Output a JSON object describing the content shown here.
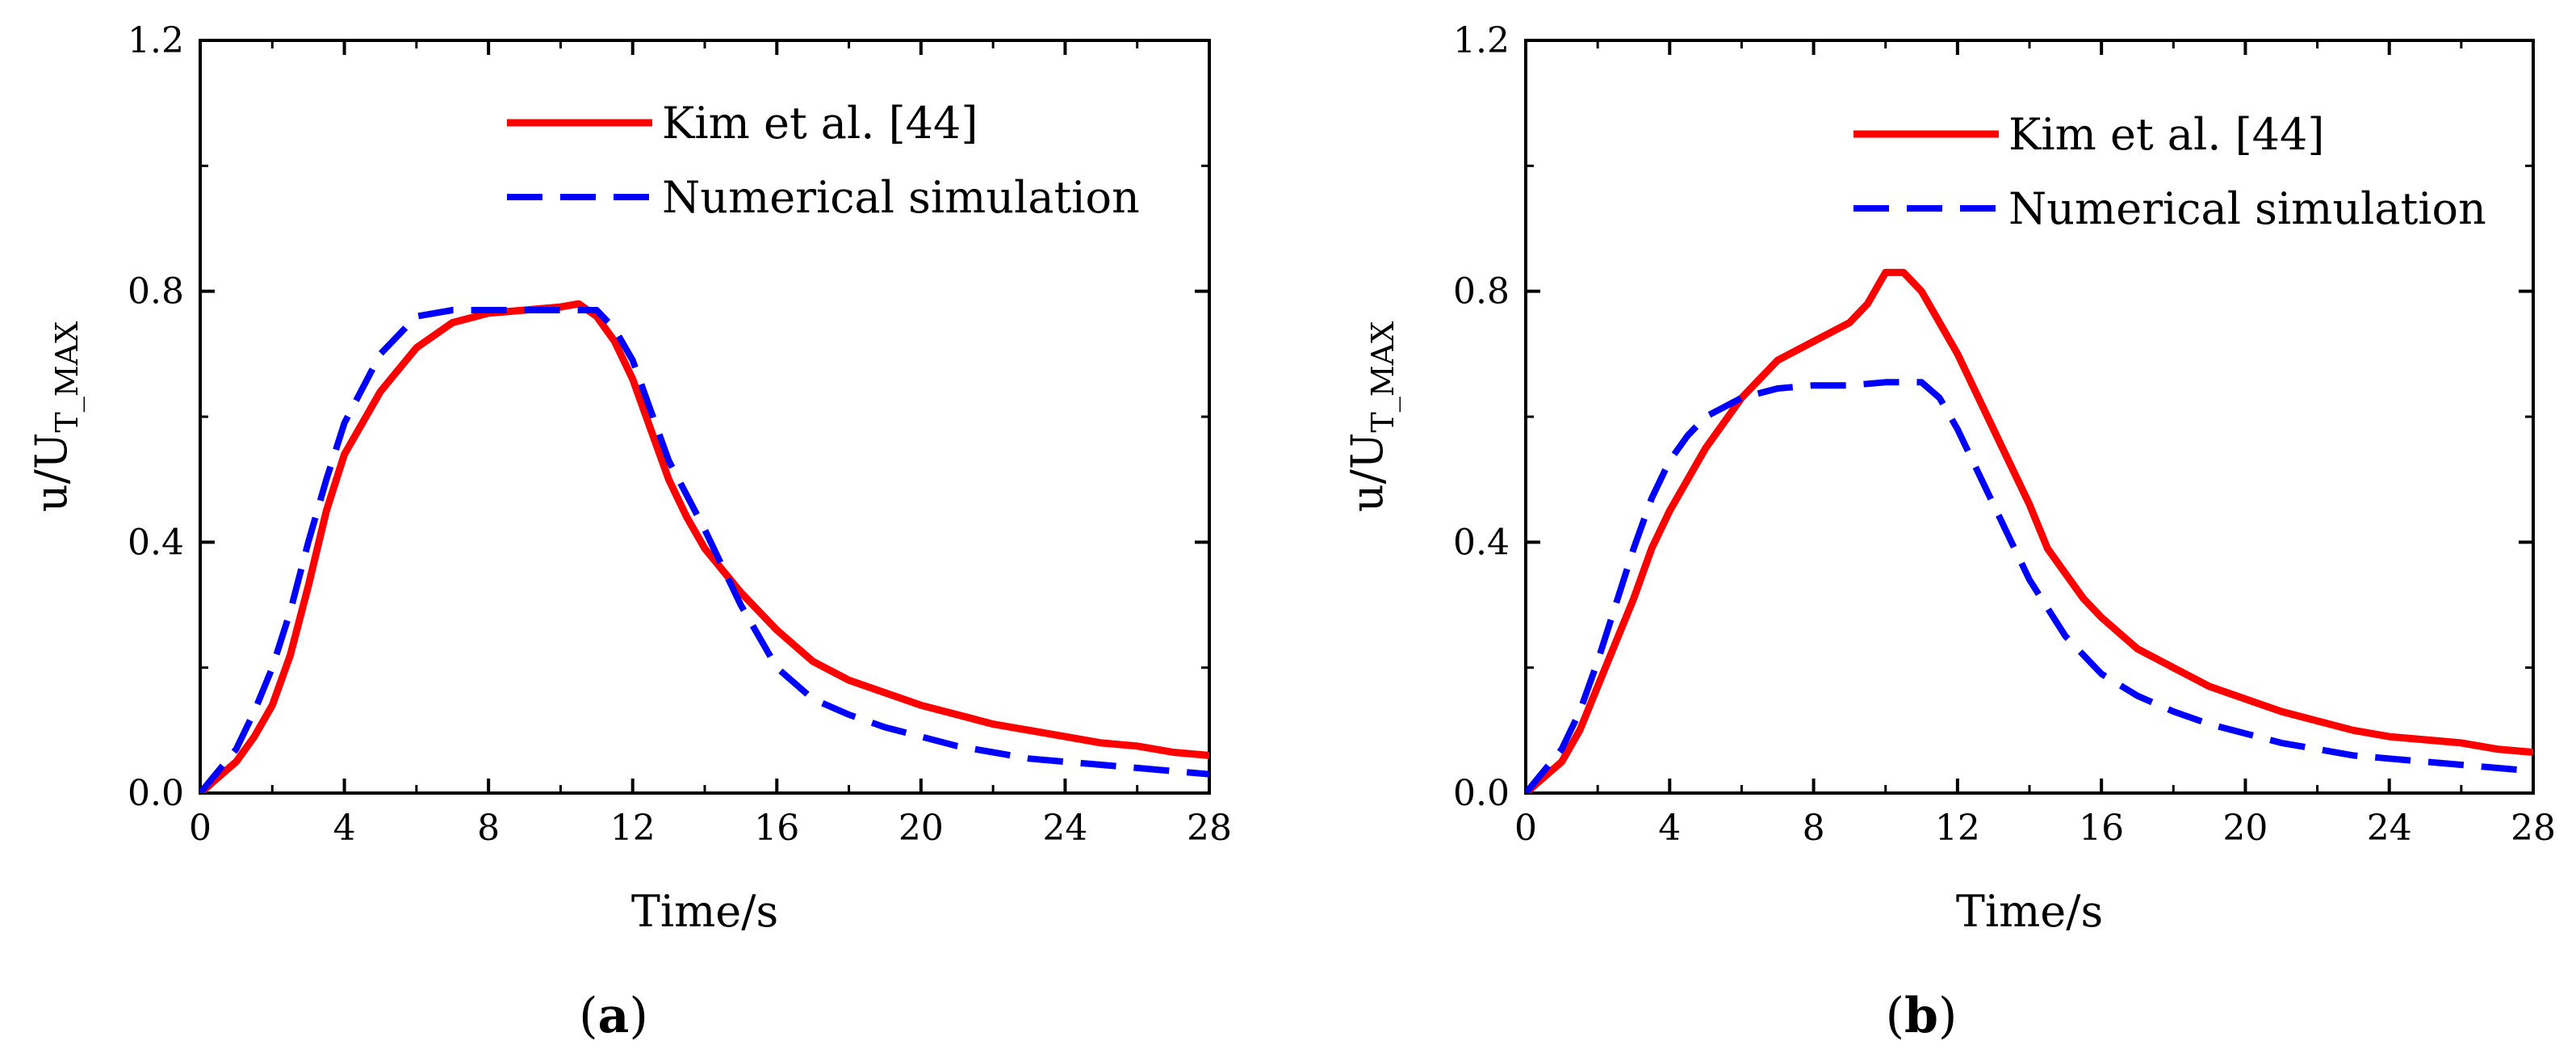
{
  "chart_data": [
    {
      "type": "line",
      "panel": "a",
      "panel_label": "a",
      "xlabel": "Time/s",
      "ylabel_main": "u/U",
      "ylabel_sub": "T_MAX",
      "xlim": [
        0,
        28
      ],
      "ylim": [
        0,
        1.2
      ],
      "xticks": [
        0,
        4,
        8,
        12,
        16,
        20,
        24,
        28
      ],
      "yticks": [
        0.0,
        0.4,
        0.8,
        1.2
      ],
      "xtick_labels": [
        "0",
        "4",
        "8",
        "12",
        "16",
        "20",
        "24",
        "28"
      ],
      "ytick_labels": [
        "0.0",
        "0.4",
        "0.8",
        "1.2"
      ],
      "legend_position": "top-right",
      "series": [
        {
          "name": "Kim et al. [44]",
          "style": "solid",
          "color": "#ff0000",
          "x": [
            0,
            1,
            1.5,
            2,
            2.5,
            3,
            3.5,
            4,
            5,
            6,
            7,
            8,
            9,
            10,
            10.5,
            11,
            11.5,
            12,
            12.5,
            13,
            13.5,
            14,
            15,
            16,
            17,
            18,
            19,
            20,
            21,
            22,
            23,
            24,
            25,
            26,
            27,
            28
          ],
          "y": [
            0.0,
            0.05,
            0.09,
            0.14,
            0.22,
            0.33,
            0.45,
            0.54,
            0.64,
            0.71,
            0.75,
            0.765,
            0.77,
            0.775,
            0.78,
            0.76,
            0.72,
            0.66,
            0.58,
            0.5,
            0.44,
            0.39,
            0.32,
            0.26,
            0.21,
            0.18,
            0.16,
            0.14,
            0.125,
            0.11,
            0.1,
            0.09,
            0.08,
            0.075,
            0.065,
            0.06
          ]
        },
        {
          "name": "Numerical simulation",
          "style": "dashed",
          "color": "#0000ff",
          "x": [
            0,
            1,
            1.5,
            2,
            2.5,
            3,
            3.5,
            4,
            5,
            6,
            7,
            8,
            9,
            10,
            11,
            11.5,
            12,
            12.5,
            13,
            14,
            15,
            16,
            17,
            18,
            19,
            20,
            21,
            22,
            23,
            24,
            25,
            26,
            27,
            28
          ],
          "y": [
            0.0,
            0.07,
            0.13,
            0.2,
            0.29,
            0.4,
            0.5,
            0.59,
            0.7,
            0.76,
            0.77,
            0.77,
            0.77,
            0.77,
            0.77,
            0.74,
            0.69,
            0.61,
            0.53,
            0.42,
            0.3,
            0.2,
            0.15,
            0.125,
            0.105,
            0.09,
            0.075,
            0.065,
            0.055,
            0.05,
            0.045,
            0.04,
            0.035,
            0.03
          ]
        }
      ]
    },
    {
      "type": "line",
      "panel": "b",
      "panel_label": "b",
      "xlabel": "Time/s",
      "ylabel_main": "u/U",
      "ylabel_sub": "T_MAX",
      "xlim": [
        0,
        28
      ],
      "ylim": [
        0,
        1.2
      ],
      "xticks": [
        0,
        4,
        8,
        12,
        16,
        20,
        24,
        28
      ],
      "yticks": [
        0.0,
        0.4,
        0.8,
        1.2
      ],
      "xtick_labels": [
        "0",
        "4",
        "8",
        "12",
        "16",
        "20",
        "24",
        "28"
      ],
      "ytick_labels": [
        "0.0",
        "0.4",
        "0.8",
        "1.2"
      ],
      "legend_position": "top-right",
      "series": [
        {
          "name": "Kim et al. [44]",
          "style": "solid",
          "color": "#ff0000",
          "x": [
            0,
            1,
            1.5,
            2,
            2.5,
            3,
            3.5,
            4,
            5,
            6,
            7,
            8,
            9,
            9.5,
            10,
            10.5,
            11,
            11.5,
            12,
            13,
            14,
            14.5,
            15,
            15.5,
            16,
            17,
            18,
            19,
            20,
            21,
            22,
            23,
            24,
            25,
            26,
            27,
            28
          ],
          "y": [
            0.0,
            0.05,
            0.1,
            0.17,
            0.24,
            0.31,
            0.39,
            0.45,
            0.55,
            0.63,
            0.69,
            0.72,
            0.75,
            0.78,
            0.83,
            0.83,
            0.8,
            0.75,
            0.7,
            0.58,
            0.46,
            0.39,
            0.35,
            0.31,
            0.28,
            0.23,
            0.2,
            0.17,
            0.15,
            0.13,
            0.115,
            0.1,
            0.09,
            0.085,
            0.08,
            0.07,
            0.065
          ]
        },
        {
          "name": "Numerical simulation",
          "style": "dashed",
          "color": "#0000ff",
          "x": [
            0,
            1,
            1.5,
            2,
            2.5,
            3,
            3.5,
            4,
            4.5,
            5,
            6,
            7,
            8,
            9,
            10,
            11,
            11.5,
            12,
            13,
            14,
            15,
            16,
            17,
            18,
            19,
            20,
            21,
            22,
            23,
            24,
            25,
            26,
            27,
            28
          ],
          "y": [
            0.0,
            0.07,
            0.13,
            0.21,
            0.3,
            0.39,
            0.47,
            0.53,
            0.57,
            0.6,
            0.63,
            0.645,
            0.65,
            0.65,
            0.655,
            0.655,
            0.63,
            0.58,
            0.46,
            0.34,
            0.25,
            0.19,
            0.155,
            0.13,
            0.11,
            0.095,
            0.08,
            0.07,
            0.06,
            0.055,
            0.05,
            0.045,
            0.04,
            0.035
          ]
        }
      ]
    }
  ]
}
